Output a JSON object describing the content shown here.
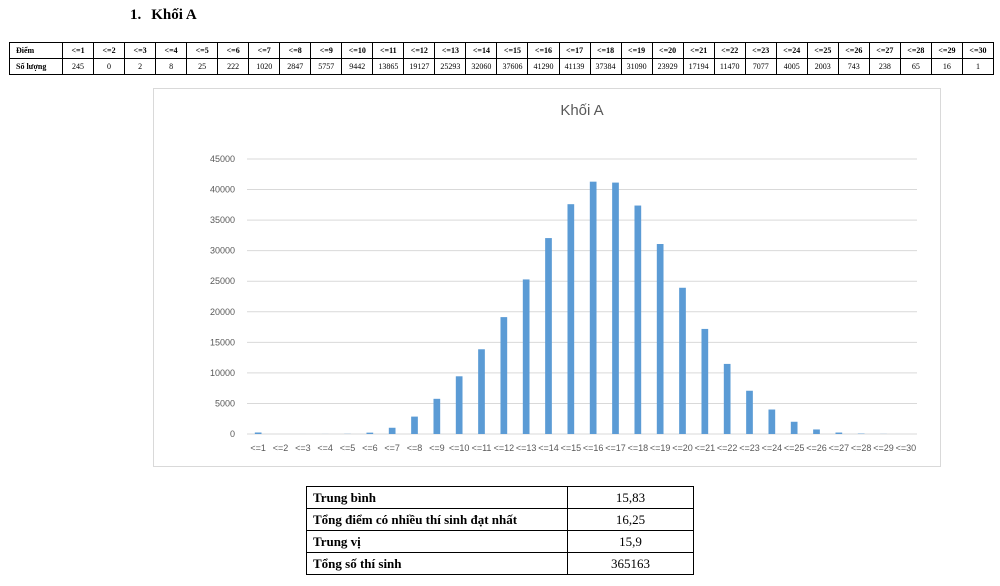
{
  "section": {
    "number": "1.",
    "title": "Khối A"
  },
  "table": {
    "row_labels": [
      "Điểm",
      "Số lượng"
    ],
    "headers": [
      "<=1",
      "<=2",
      "<=3",
      "<=4",
      "<=5",
      "<=6",
      "<=7",
      "<=8",
      "<=9",
      "<=10",
      "<=11",
      "<=12",
      "<=13",
      "<=14",
      "<=15",
      "<=16",
      "<=17",
      "<=18",
      "<=19",
      "<=20",
      "<=21",
      "<=22",
      "<=23",
      "<=24",
      "<=25",
      "<=26",
      "<=27",
      "<=28",
      "<=29",
      "<=30"
    ],
    "counts": [
      "245",
      "0",
      "2",
      "8",
      "25",
      "222",
      "1020",
      "2847",
      "5757",
      "9442",
      "13865",
      "19127",
      "25293",
      "32060",
      "37606",
      "41290",
      "41139",
      "37384",
      "31090",
      "23929",
      "17194",
      "11470",
      "7077",
      "4005",
      "2003",
      "743",
      "238",
      "65",
      "16",
      "1"
    ]
  },
  "chart_data": {
    "type": "bar",
    "title": "Khối A",
    "categories": [
      "<=1",
      "<=2",
      "<=3",
      "<=4",
      "<=5",
      "<=6",
      "<=7",
      "<=8",
      "<=9",
      "<=10",
      "<=11",
      "<=12",
      "<=13",
      "<=14",
      "<=15",
      "<=16",
      "<=17",
      "<=18",
      "<=19",
      "<=20",
      "<=21",
      "<=22",
      "<=23",
      "<=24",
      "<=25",
      "<=26",
      "<=27",
      "<=28",
      "<=29",
      "<=30"
    ],
    "series": [
      {
        "values": [
          245,
          0,
          2,
          8,
          25,
          222,
          1020,
          2847,
          5757,
          9442,
          13865,
          19127,
          25293,
          32060,
          37606,
          41290,
          41139,
          37384,
          31090,
          23929,
          17194,
          11470,
          7077,
          4005,
          2003,
          743,
          238,
          65,
          16,
          1
        ]
      }
    ],
    "yticks": [
      "0",
      "5000",
      "10000",
      "15000",
      "20000",
      "25000",
      "30000",
      "35000",
      "40000",
      "45000"
    ],
    "ylim": [
      0,
      45000
    ],
    "grid": true,
    "legend": "none",
    "colors": {
      "bar": "#5b9bd5",
      "grid": "#d9d9d9",
      "text": "#595959"
    }
  },
  "stats": [
    {
      "label": "Trung bình",
      "value": "15,83"
    },
    {
      "label": "Tổng điểm có nhiều thí sinh đạt nhất",
      "value": "16,25"
    },
    {
      "label": "Trung vị",
      "value": "15,9"
    },
    {
      "label": "Tổng số thí sinh",
      "value": "365163"
    }
  ]
}
